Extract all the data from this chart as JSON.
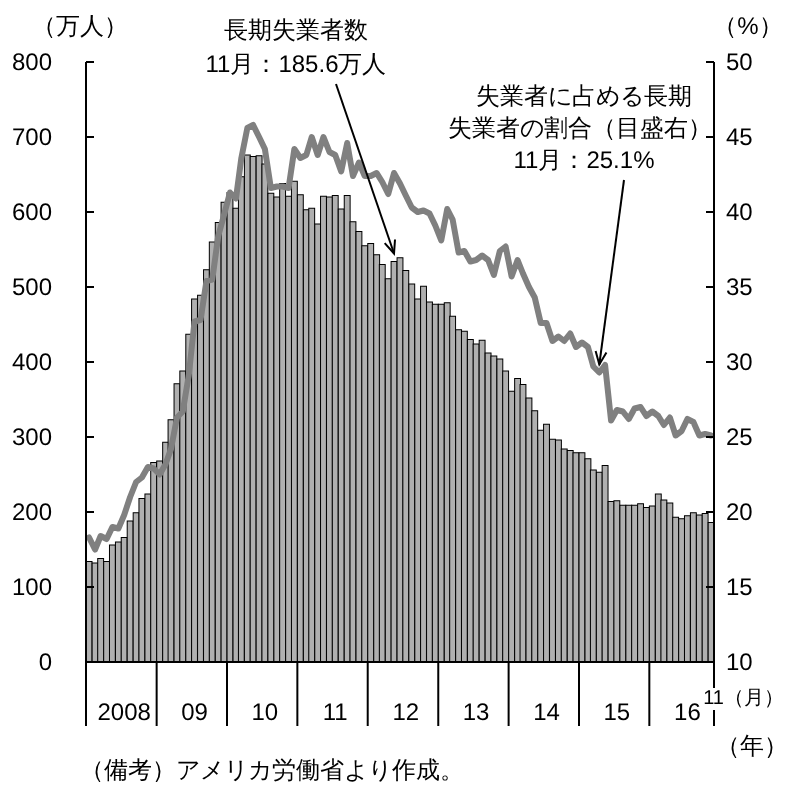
{
  "chart_data": {
    "type": "bar",
    "ylabel": "（万人）",
    "y2label": "（%）",
    "xlabel": "（年）",
    "x": [
      "2008-01",
      "2008-02",
      "2008-03",
      "2008-04",
      "2008-05",
      "2008-06",
      "2008-07",
      "2008-08",
      "2008-09",
      "2008-10",
      "2008-11",
      "2008-12",
      "2009-01",
      "2009-02",
      "2009-03",
      "2009-04",
      "2009-05",
      "2009-06",
      "2009-07",
      "2009-08",
      "2009-09",
      "2009-10",
      "2009-11",
      "2009-12",
      "2010-01",
      "2010-02",
      "2010-03",
      "2010-04",
      "2010-05",
      "2010-06",
      "2010-07",
      "2010-08",
      "2010-09",
      "2010-10",
      "2010-11",
      "2010-12",
      "2011-01",
      "2011-02",
      "2011-03",
      "2011-04",
      "2011-05",
      "2011-06",
      "2011-07",
      "2011-08",
      "2011-09",
      "2011-10",
      "2011-11",
      "2011-12",
      "2012-01",
      "2012-02",
      "2012-03",
      "2012-04",
      "2012-05",
      "2012-06",
      "2012-07",
      "2012-08",
      "2012-09",
      "2012-10",
      "2012-11",
      "2012-12",
      "2013-01",
      "2013-02",
      "2013-03",
      "2013-04",
      "2013-05",
      "2013-06",
      "2013-07",
      "2013-08",
      "2013-09",
      "2013-10",
      "2013-11",
      "2013-12",
      "2014-01",
      "2014-02",
      "2014-03",
      "2014-04",
      "2014-05",
      "2014-06",
      "2014-07",
      "2014-08",
      "2014-09",
      "2014-10",
      "2014-11",
      "2014-12",
      "2015-01",
      "2015-02",
      "2015-03",
      "2015-04",
      "2015-05",
      "2015-06",
      "2015-07",
      "2015-08",
      "2015-09",
      "2015-10",
      "2015-11",
      "2015-12",
      "2016-01",
      "2016-02",
      "2016-03",
      "2016-04",
      "2016-05",
      "2016-06",
      "2016-07",
      "2016-08",
      "2016-09",
      "2016-10",
      "2016-11"
    ],
    "series": [
      {
        "color": "#b0b0b0",
        "values": [
          134,
          132,
          138,
          134,
          156,
          160,
          166,
          188,
          199,
          218,
          224,
          266,
          268,
          293,
          323,
          371,
          388,
          437,
          484,
          489,
          523,
          560,
          586,
          613,
          626,
          605,
          647,
          676,
          674,
          675,
          664,
          625,
          620,
          638,
          621,
          641,
          623,
          603,
          605,
          584,
          621,
          620,
          622,
          604,
          622,
          587,
          574,
          555,
          558,
          543,
          530,
          511,
          534,
          539,
          522,
          504,
          484,
          501,
          480,
          477,
          477,
          479,
          461,
          443,
          441,
          430,
          424,
          429,
          412,
          408,
          404,
          388,
          361,
          378,
          370,
          352,
          335,
          309,
          317,
          297,
          296,
          284,
          282,
          279,
          279,
          271,
          256,
          253,
          262,
          214,
          215,
          209,
          209,
          209,
          211,
          206,
          208,
          224,
          216,
          212,
          193,
          191,
          195,
          199,
          196,
          198,
          186
        ]
      },
      {
        "type": "line",
        "axis": "y2",
        "color": "#808080",
        "values": [
          18.3,
          17.5,
          18.4,
          18.2,
          19.0,
          18.9,
          19.8,
          21.0,
          22.0,
          22.3,
          23.0,
          22.9,
          22.5,
          23.2,
          24.2,
          26.3,
          26.7,
          29.1,
          32.7,
          32.8,
          35.4,
          35.5,
          38.4,
          39.8,
          41.3,
          40.9,
          43.6,
          45.6,
          45.8,
          45.0,
          44.2,
          41.6,
          41.7,
          41.7,
          41.6,
          44.2,
          43.6,
          43.8,
          45.0,
          43.8,
          45.0,
          44.0,
          43.8,
          42.7,
          44.6,
          42.4,
          43.3,
          42.4,
          42.4,
          42.6,
          42.0,
          41.2,
          42.6,
          41.9,
          41.1,
          40.3,
          40.0,
          40.1,
          39.9,
          39.1,
          38.1,
          40.2,
          39.5,
          37.3,
          37.4,
          36.7,
          36.8,
          37.1,
          36.8,
          35.8,
          37.4,
          37.7,
          35.7,
          36.8,
          35.9,
          35.0,
          34.3,
          32.6,
          32.6,
          31.4,
          31.7,
          31.4,
          31.9,
          31.0,
          31.3,
          31.0,
          29.7,
          29.3,
          29.8,
          26.1,
          26.8,
          26.7,
          26.2,
          26.9,
          27.0,
          26.4,
          26.7,
          26.4,
          25.8,
          26.3,
          25.1,
          25.4,
          26.2,
          26.0,
          25.1,
          25.2,
          25.1
        ]
      }
    ],
    "xlim": [
      "2007-12-16",
      "2016-11-16"
    ],
    "xticks": [
      {
        "value": "2008-07",
        "label": "2008"
      },
      {
        "value": "2009-07",
        "label": "09"
      },
      {
        "value": "2010-07",
        "label": "10"
      },
      {
        "value": "2011-07",
        "label": "11"
      },
      {
        "value": "2012-07",
        "label": "12"
      },
      {
        "value": "2013-07",
        "label": "13"
      },
      {
        "value": "2014-07",
        "label": "14"
      },
      {
        "value": "2015-07",
        "label": "15"
      },
      {
        "value": "2016-07",
        "label": "16"
      }
    ],
    "ylim": [
      0,
      800
    ],
    "yticks": [
      0,
      100,
      200,
      300,
      400,
      500,
      600,
      700,
      800
    ],
    "y2lim": [
      10,
      50
    ],
    "y2ticks": [
      10,
      15,
      20,
      25,
      30,
      35,
      40,
      45,
      50
    ],
    "grid": false,
    "annotations": [
      "長期失業者数",
      {
        "text": "11月：185.6万人",
        "x": "2012-05",
        "y": 534
      },
      "失業者に占める長期",
      "失業者の割合（目盛右）",
      {
        "text": "11月：25.1%",
        "x": "2015-04",
        "y": 386
      },
      "11（月）",
      "（備考）アメリカ労働省より作成。"
    ]
  }
}
